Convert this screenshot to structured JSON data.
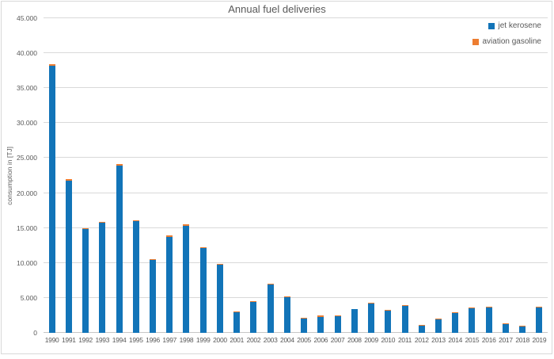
{
  "chart_data": {
    "type": "bar",
    "stacked": true,
    "title": "Annual fuel deliveries",
    "xlabel": "",
    "ylabel": "consumption in [TJ]",
    "ylim": [
      0,
      45000
    ],
    "ytick_step": 5000,
    "ytick_labels": [
      "0",
      "5.000",
      "10.000",
      "15.000",
      "20.000",
      "25.000",
      "30.000",
      "35.000",
      "40.000",
      "45.000"
    ],
    "grid": true,
    "legend_position": "top-right",
    "categories": [
      "1990",
      "1991",
      "1992",
      "1993",
      "1994",
      "1995",
      "1996",
      "1997",
      "1998",
      "1999",
      "2000",
      "2001",
      "2002",
      "2003",
      "2004",
      "2005",
      "2006",
      "2007",
      "2008",
      "2009",
      "2010",
      "2011",
      "2012",
      "2013",
      "2014",
      "2015",
      "2016",
      "2017",
      "2018",
      "2019"
    ],
    "series": [
      {
        "name": "jet kerosene",
        "color": "#1274b8",
        "values": [
          38200,
          21800,
          14850,
          15750,
          23950,
          15950,
          10450,
          13750,
          15350,
          12150,
          9750,
          3000,
          4400,
          6900,
          5150,
          2050,
          2300,
          2400,
          3350,
          4200,
          3150,
          3850,
          1050,
          1900,
          2850,
          3500,
          3650,
          1300,
          900,
          3600
        ]
      },
      {
        "name": "aviation gasoline",
        "color": "#ed7d31",
        "values": [
          200,
          200,
          150,
          150,
          150,
          150,
          150,
          150,
          150,
          150,
          150,
          100,
          100,
          100,
          100,
          150,
          150,
          150,
          100,
          150,
          150,
          100,
          100,
          100,
          100,
          100,
          150,
          100,
          150,
          100
        ]
      }
    ],
    "colors": {
      "text": "#595959",
      "gridline": "#d9d9d9",
      "background": "#ffffff",
      "border": "#d9d9d9"
    }
  }
}
